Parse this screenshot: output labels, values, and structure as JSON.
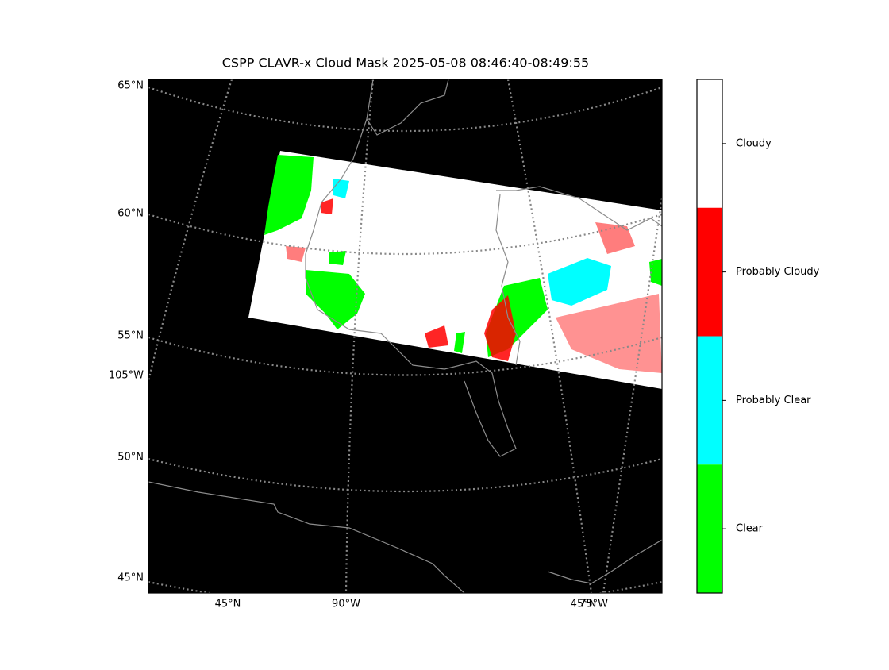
{
  "title": "CSPP CLAVR-x Cloud Mask 2025-05-08 08:46:40-08:49:55",
  "left_labels": [
    "65°N",
    "60°N",
    "55°N",
    "105°W",
    "50°N",
    "45°N"
  ],
  "bottom_labels": [
    "45°N",
    "90°W",
    "45°N",
    "75°W"
  ],
  "colorbar": {
    "categories": [
      "Cloudy",
      "Probably Cloudy",
      "Probably Clear",
      "Clear"
    ],
    "colors": [
      "#ffffff",
      "#ff0000",
      "#00ffff",
      "#00ff00"
    ]
  }
}
